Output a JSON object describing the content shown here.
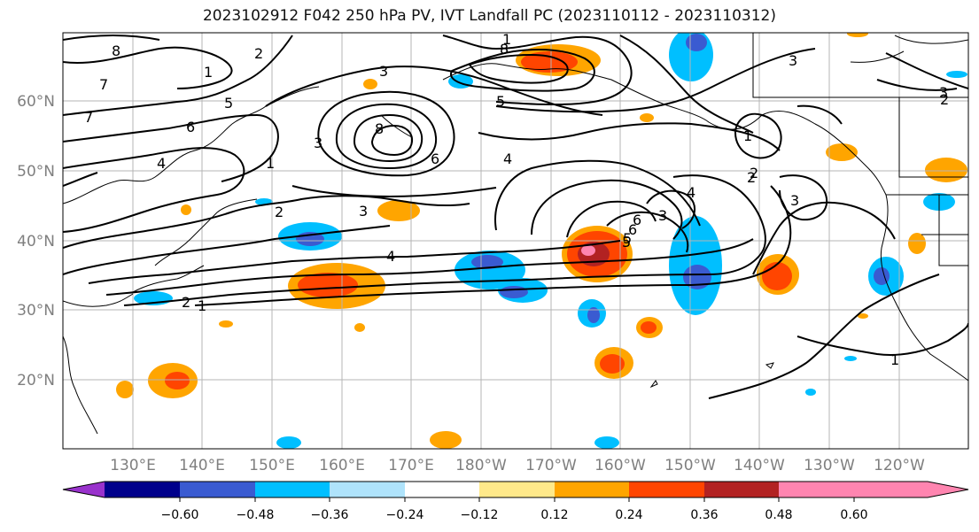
{
  "title": "2023102912 F042 250 hPa PV, IVT Landfall PC (2023110112 - 2023110312)",
  "lat_labels": [
    "60°N",
    "50°N",
    "40°N",
    "30°N",
    "20°N"
  ],
  "lon_labels": [
    "130°E",
    "140°E",
    "150°E",
    "160°E",
    "170°E",
    "180°W",
    "170°W",
    "160°W",
    "150°W",
    "140°W",
    "130°W",
    "120°W"
  ],
  "contour_labels": [
    "8",
    "7",
    "1",
    "2",
    "3",
    "8",
    "7",
    "6",
    "5",
    "4",
    "1",
    "3",
    "2",
    "1",
    "5",
    "8",
    "6",
    "6",
    "5",
    "4",
    "3",
    "2",
    "1",
    "4",
    "3",
    "2",
    "6",
    "5",
    "1",
    "2",
    "3",
    "4",
    "3",
    "2",
    "3",
    "1"
  ],
  "colorbar": {
    "ticks": [
      "−0.60",
      "−0.48",
      "−0.36",
      "−0.24",
      "−0.12",
      "0.12",
      "0.24",
      "0.36",
      "0.48",
      "0.60"
    ],
    "colors": [
      "#9932cc",
      "#00008b",
      "#3a5bd1",
      "#00bfff",
      "#afe3fb",
      "#ffffff",
      "#ffe98a",
      "#ffa500",
      "#ff4500",
      "#b22222",
      "#ff85b0"
    ]
  },
  "colors": {
    "contour": "#000000",
    "grid": "#b4b4b4",
    "coast": "#000000"
  }
}
